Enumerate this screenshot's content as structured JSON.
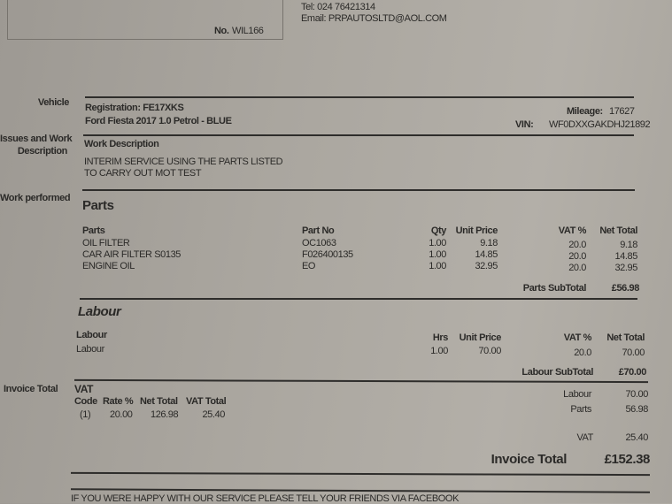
{
  "header": {
    "tel": "Tel: 024 76421314",
    "email": "Email: PRPAUTOSLTD@AOL.COM",
    "no_label": "No.",
    "no_value": "WIL166"
  },
  "vehicle": {
    "section": "Vehicle",
    "registration": "Registration: FE17XKS",
    "description": "Ford Fiesta  2017 1.0 Petrol - BLUE",
    "mileage_label": "Mileage:",
    "mileage": "17627",
    "vin_label": "VIN:",
    "vin": "WF0DXXGAKDHJ21892"
  },
  "issues": {
    "section_line1": "Issues and Work",
    "section_line2": "Description",
    "title": "Work Description",
    "line1": "INTERIM SERVICE USING THE PARTS LISTED",
    "line2": "TO CARRY OUT MOT TEST"
  },
  "work": {
    "section": "Work performed"
  },
  "parts": {
    "title": "Parts",
    "headers": [
      "Parts",
      "Part No",
      "Qty",
      "Unit Price",
      "VAT %",
      "Net Total"
    ],
    "rows": [
      [
        "OIL FILTER",
        "OC1063",
        "1.00",
        "9.18",
        "20.0",
        "9.18"
      ],
      [
        "CAR AIR FILTER S0135",
        "F026400135",
        "1.00",
        "14.85",
        "20.0",
        "14.85"
      ],
      [
        "ENGINE OIL",
        "EO",
        "1.00",
        "32.95",
        "20.0",
        "32.95"
      ]
    ],
    "subtotal_label": "Parts SubTotal",
    "subtotal": "£56.98"
  },
  "labour": {
    "title": "Labour",
    "headers": [
      "Labour",
      "Hrs",
      "Unit Price",
      "VAT %",
      "Net Total"
    ],
    "rows": [
      [
        "Labour",
        "1.00",
        "70.00",
        "20.0",
        "70.00"
      ]
    ],
    "subtotal_label": "Labour SubTotal",
    "subtotal": "£70.00"
  },
  "invoice": {
    "section": "Invoice Total",
    "vat_title": "VAT",
    "vat_headers": [
      "Code",
      "Rate %",
      "Net Total",
      "VAT Total"
    ],
    "vat_row": [
      "(1)",
      "20.00",
      "126.98",
      "25.40"
    ],
    "labour_label": "Labour",
    "labour": "70.00",
    "parts_label": "Parts",
    "parts": "56.98",
    "vat_label": "VAT",
    "vat": "25.40",
    "total_label": "Invoice Total",
    "total": "£152.38"
  },
  "footer": {
    "text": "IF YOU WERE HAPPY WITH OUR SERVICE PLEASE TELL YOUR FRIENDS VIA FACEBOOK"
  }
}
